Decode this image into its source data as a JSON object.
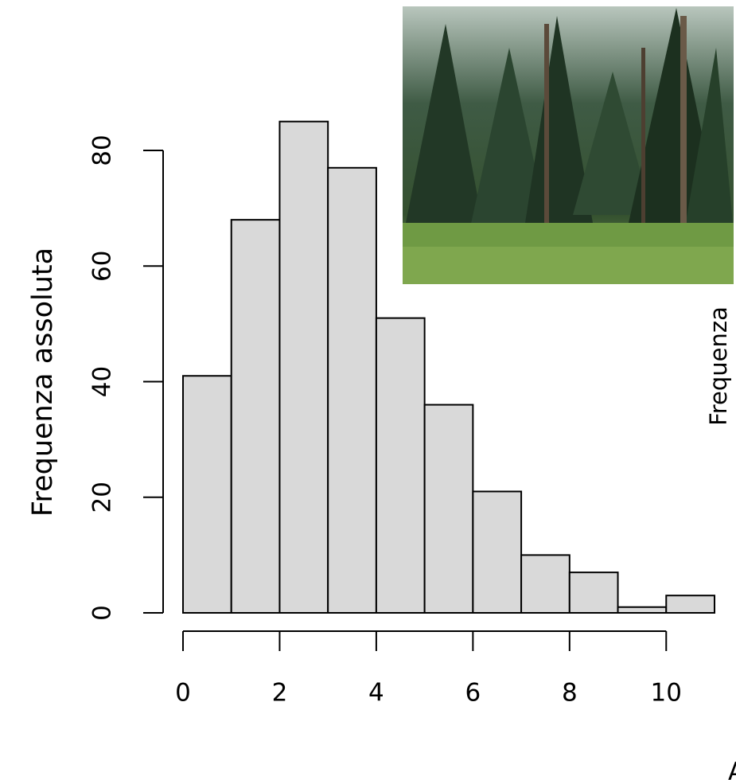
{
  "chart_data": {
    "type": "histogram",
    "ylabel": "Frequenza assoluta",
    "bins": [
      0,
      1,
      2,
      3,
      4,
      5,
      6,
      7,
      8,
      9,
      10,
      11
    ],
    "values": [
      41,
      68,
      85,
      77,
      51,
      36,
      21,
      10,
      7,
      1,
      3
    ],
    "color": "#d9d9d9",
    "xlim": [
      0,
      11
    ],
    "ylim": [
      0,
      85
    ],
    "xticks": [
      0,
      2,
      4,
      6,
      8,
      10
    ],
    "yticks": [
      0,
      20,
      40,
      60,
      80
    ]
  },
  "overlay": {
    "side_label": "Frequenza",
    "corner_label": "A"
  }
}
